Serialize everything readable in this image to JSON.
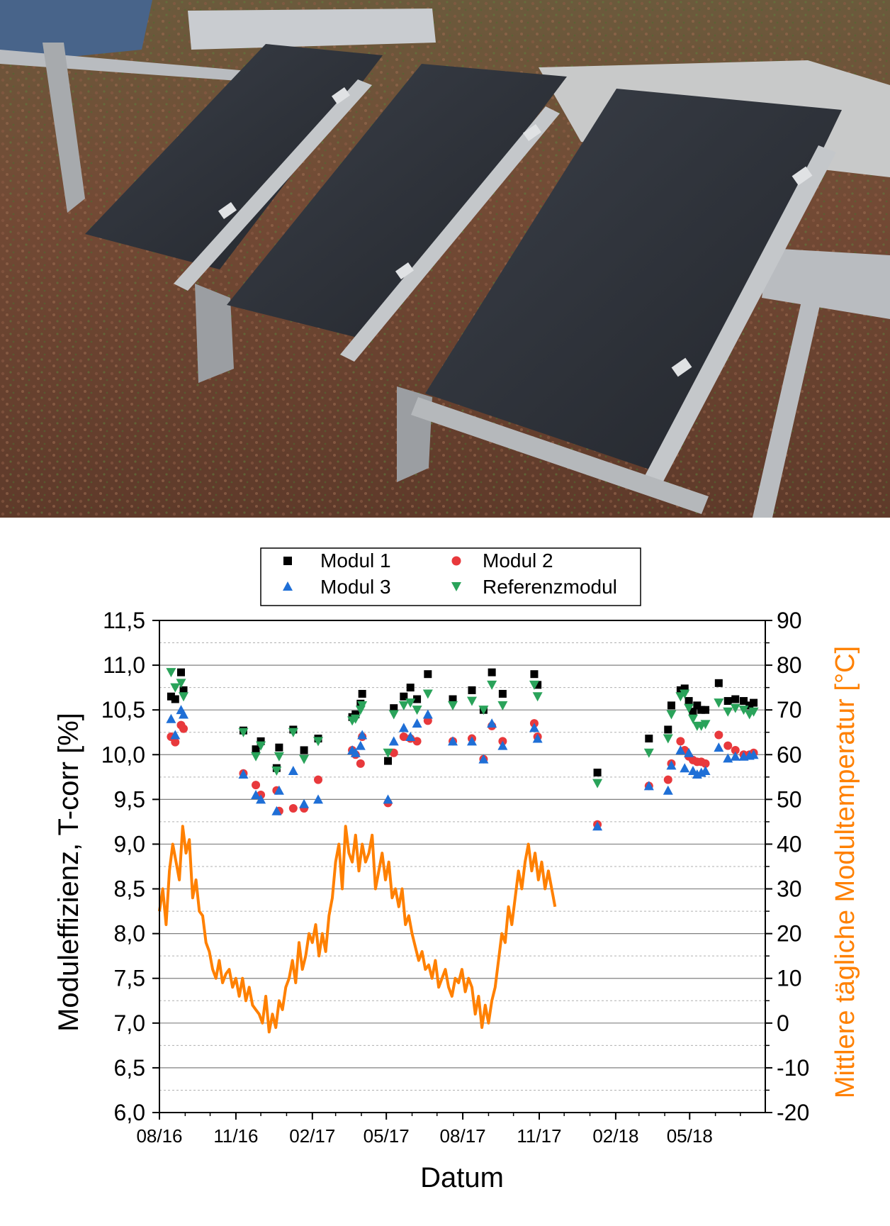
{
  "photo": {
    "description_icon": "solar-panels-photo",
    "colors": {
      "ground": "#6e4a34",
      "panel": "#2b2f36",
      "frame": "#b9bcc0"
    }
  },
  "chart_data": {
    "type": "scatter",
    "xlabel": "Datum",
    "ylabel": "Moduleffizienz, T-corr [%]",
    "ylabel2": "Mittlere tägliche Modultemperatur [°C]",
    "x_ticks": [
      "08/16",
      "11/16",
      "02/17",
      "05/17",
      "08/17",
      "11/17",
      "02/18",
      "05/18"
    ],
    "y_ticks": [
      "6,0",
      "6,5",
      "7,0",
      "7,5",
      "8,0",
      "8,5",
      "9,0",
      "9,5",
      "10,0",
      "10,5",
      "11,0",
      "11,5"
    ],
    "y2_ticks": [
      "-20",
      "-10",
      "0",
      "10",
      "20",
      "30",
      "40",
      "50",
      "60",
      "70",
      "80",
      "90"
    ],
    "ylim": [
      6.0,
      11.5
    ],
    "y2lim": [
      -20,
      90
    ],
    "grid": true,
    "legend_position": "top-center",
    "colors": {
      "modul1": "#000000",
      "modul2": "#e8393c",
      "modul3": "#1f6fd6",
      "referenz": "#2aa35a",
      "temperature": "#ff8000",
      "axis_right": "#ff8000",
      "grid": "#808080"
    },
    "series": [
      {
        "name": "Modul 1",
        "marker": "square",
        "x": [
          "2016-08-15",
          "2016-08-20",
          "2016-08-27",
          "2016-08-30",
          "2016-11-10",
          "2016-11-25",
          "2016-12-01",
          "2016-12-20",
          "2016-12-23",
          "2017-01-09",
          "2017-01-22",
          "2017-02-08",
          "2017-03-21",
          "2017-03-25",
          "2017-03-31",
          "2017-04-02",
          "2017-05-03",
          "2017-05-10",
          "2017-05-22",
          "2017-05-30",
          "2017-06-07",
          "2017-06-20",
          "2017-07-20",
          "2017-08-12",
          "2017-08-26",
          "2017-09-05",
          "2017-09-18",
          "2017-10-26",
          "2017-10-30",
          "2018-01-10",
          "2018-03-13",
          "2018-04-05",
          "2018-04-09",
          "2018-04-20",
          "2018-04-25",
          "2018-04-30",
          "2018-05-05",
          "2018-05-10",
          "2018-05-15",
          "2018-05-20",
          "2018-06-05",
          "2018-06-16",
          "2018-06-25",
          "2018-07-05",
          "2018-07-12",
          "2018-07-17"
        ],
        "values": [
          10.65,
          10.62,
          10.92,
          10.72,
          10.27,
          10.06,
          10.15,
          9.85,
          10.08,
          10.28,
          10.05,
          10.18,
          10.42,
          10.45,
          10.57,
          10.68,
          9.93,
          10.52,
          10.65,
          10.75,
          10.62,
          10.9,
          10.62,
          10.72,
          10.5,
          10.92,
          10.68,
          10.9,
          10.78,
          9.8,
          10.18,
          10.28,
          10.55,
          10.72,
          10.74,
          10.6,
          10.48,
          10.55,
          10.5,
          10.5,
          10.8,
          10.6,
          10.62,
          10.6,
          10.55,
          10.58
        ]
      },
      {
        "name": "Modul 2",
        "marker": "circle",
        "x": [
          "2016-08-15",
          "2016-08-20",
          "2016-08-27",
          "2016-08-30",
          "2016-11-10",
          "2016-11-25",
          "2016-12-01",
          "2016-12-20",
          "2016-12-23",
          "2017-01-09",
          "2017-01-22",
          "2017-02-08",
          "2017-03-21",
          "2017-03-25",
          "2017-03-31",
          "2017-04-02",
          "2017-05-03",
          "2017-05-10",
          "2017-05-22",
          "2017-05-30",
          "2017-06-07",
          "2017-06-20",
          "2017-07-20",
          "2017-08-12",
          "2017-08-26",
          "2017-09-05",
          "2017-09-18",
          "2017-10-26",
          "2017-10-30",
          "2018-01-10",
          "2018-03-13",
          "2018-04-05",
          "2018-04-09",
          "2018-04-20",
          "2018-04-25",
          "2018-04-30",
          "2018-05-05",
          "2018-05-10",
          "2018-05-15",
          "2018-05-20",
          "2018-06-05",
          "2018-06-16",
          "2018-06-25",
          "2018-07-05",
          "2018-07-12",
          "2018-07-17"
        ],
        "values": [
          10.2,
          10.14,
          10.33,
          10.29,
          9.79,
          9.66,
          9.55,
          9.6,
          9.37,
          9.4,
          9.4,
          9.72,
          10.05,
          10.0,
          9.9,
          10.2,
          9.46,
          10.02,
          10.2,
          10.18,
          10.15,
          10.38,
          10.15,
          10.18,
          9.95,
          10.32,
          10.15,
          10.35,
          10.2,
          9.22,
          9.65,
          9.72,
          9.9,
          10.15,
          10.05,
          9.98,
          9.94,
          9.92,
          9.92,
          9.9,
          10.22,
          10.1,
          10.05,
          10.0,
          10.0,
          10.02
        ]
      },
      {
        "name": "Modul 3",
        "marker": "triangle-up",
        "x": [
          "2016-08-15",
          "2016-08-20",
          "2016-08-27",
          "2016-08-30",
          "2016-11-10",
          "2016-11-25",
          "2016-12-01",
          "2016-12-20",
          "2016-12-23",
          "2017-01-09",
          "2017-01-22",
          "2017-02-08",
          "2017-03-21",
          "2017-03-25",
          "2017-03-31",
          "2017-04-02",
          "2017-05-03",
          "2017-05-10",
          "2017-05-22",
          "2017-05-30",
          "2017-06-07",
          "2017-06-20",
          "2017-07-20",
          "2017-08-12",
          "2017-08-26",
          "2017-09-05",
          "2017-09-18",
          "2017-10-26",
          "2017-10-30",
          "2018-01-10",
          "2018-03-13",
          "2018-04-05",
          "2018-04-09",
          "2018-04-20",
          "2018-04-25",
          "2018-04-30",
          "2018-05-05",
          "2018-05-10",
          "2018-05-15",
          "2018-05-20",
          "2018-06-05",
          "2018-06-16",
          "2018-06-25",
          "2018-07-05",
          "2018-07-12",
          "2018-07-17"
        ],
        "values": [
          10.4,
          10.22,
          10.5,
          10.45,
          9.78,
          9.55,
          9.5,
          9.37,
          9.6,
          9.82,
          9.45,
          9.5,
          10.05,
          10.02,
          10.1,
          10.22,
          9.5,
          10.15,
          10.3,
          10.2,
          10.35,
          10.45,
          10.15,
          10.15,
          9.95,
          10.35,
          10.1,
          10.3,
          10.18,
          9.2,
          9.65,
          9.6,
          9.88,
          10.05,
          9.85,
          10.02,
          9.82,
          9.78,
          9.8,
          9.82,
          10.08,
          9.96,
          9.98,
          9.98,
          9.99,
          10.0
        ]
      },
      {
        "name": "Referenzmodul",
        "marker": "triangle-down",
        "x": [
          "2016-08-15",
          "2016-08-20",
          "2016-08-27",
          "2016-08-30",
          "2016-11-10",
          "2016-11-25",
          "2016-12-01",
          "2016-12-20",
          "2016-12-23",
          "2017-01-09",
          "2017-01-22",
          "2017-02-08",
          "2017-03-21",
          "2017-03-25",
          "2017-03-31",
          "2017-04-02",
          "2017-05-03",
          "2017-05-10",
          "2017-05-22",
          "2017-05-30",
          "2017-06-07",
          "2017-06-20",
          "2017-07-20",
          "2017-08-12",
          "2017-08-26",
          "2017-09-05",
          "2017-09-18",
          "2017-10-26",
          "2017-10-30",
          "2018-01-10",
          "2018-03-13",
          "2018-04-05",
          "2018-04-09",
          "2018-04-20",
          "2018-04-25",
          "2018-04-30",
          "2018-05-05",
          "2018-05-10",
          "2018-05-15",
          "2018-05-20",
          "2018-06-05",
          "2018-06-16",
          "2018-06-25",
          "2018-07-05",
          "2018-07-12",
          "2018-07-17"
        ],
        "values": [
          10.92,
          10.75,
          10.8,
          10.65,
          10.25,
          9.98,
          10.1,
          9.82,
          9.98,
          10.25,
          9.95,
          10.15,
          10.38,
          10.4,
          10.5,
          10.55,
          10.02,
          10.45,
          10.55,
          10.58,
          10.5,
          10.68,
          10.55,
          10.6,
          10.5,
          10.78,
          10.55,
          10.78,
          10.65,
          9.68,
          10.02,
          10.18,
          10.45,
          10.65,
          10.68,
          10.52,
          10.4,
          10.32,
          10.32,
          10.34,
          10.58,
          10.48,
          10.52,
          10.5,
          10.45,
          10.48
        ]
      },
      {
        "name": "",
        "axis": "right",
        "type": "line",
        "x_start": "2016-08-01",
        "x_end": "2018-07-31",
        "x_step_days": 4,
        "values": [
          25,
          30,
          22,
          34,
          40,
          36,
          32,
          44,
          38,
          41,
          28,
          32,
          25,
          24,
          18,
          16,
          12,
          10,
          14,
          9,
          11,
          12,
          8,
          10,
          6,
          10,
          5,
          8,
          4,
          3,
          2,
          0,
          6,
          -2,
          2,
          -1,
          5,
          3,
          8,
          10,
          14,
          9,
          18,
          12,
          15,
          20,
          18,
          22,
          15,
          20,
          16,
          24,
          28,
          36,
          40,
          30,
          44,
          38,
          36,
          42,
          34,
          40,
          36,
          38,
          42,
          30,
          34,
          38,
          32,
          36,
          28,
          30,
          26,
          30,
          22,
          24,
          20,
          17,
          14,
          16,
          12,
          13,
          10,
          14,
          8,
          10,
          12,
          8,
          6,
          10,
          9,
          12,
          7,
          10,
          8,
          2,
          6,
          -1,
          4,
          0,
          5,
          8,
          14,
          20,
          18,
          26,
          22,
          28,
          34,
          30,
          36,
          40,
          34,
          38,
          32,
          36,
          30,
          34,
          30,
          26
        ]
      }
    ]
  }
}
